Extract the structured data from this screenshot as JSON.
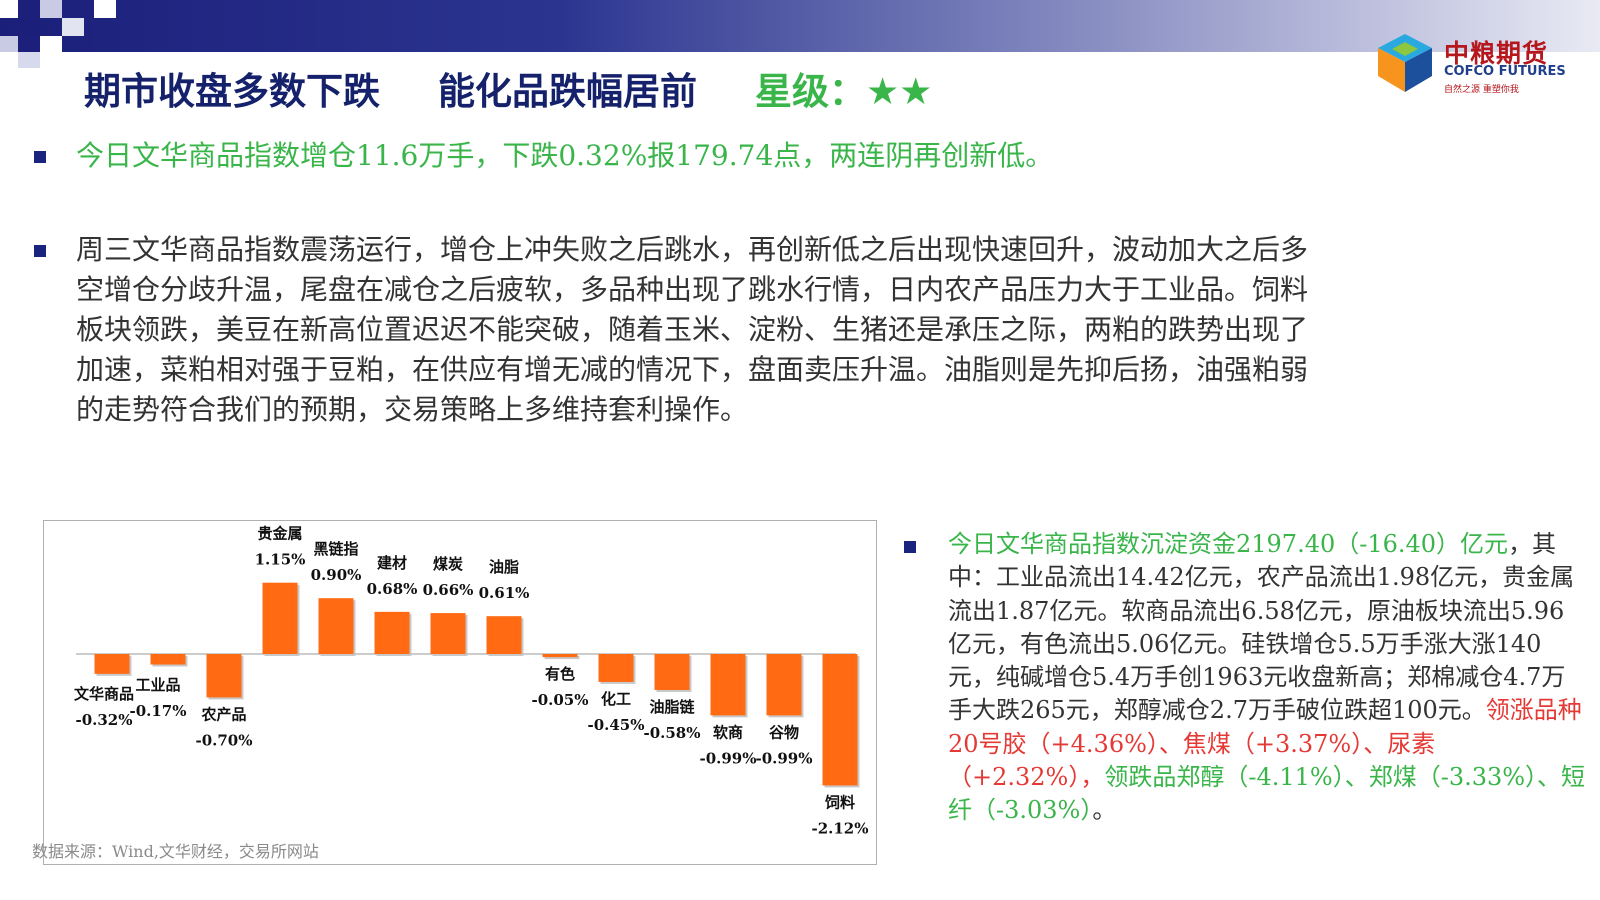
{
  "header": {
    "title_part1": "期市收盘多数下跌",
    "title_part2": "能化品跌幅居前",
    "title_part3": "星级：★★"
  },
  "logo": {
    "name_cn": "中粮期货",
    "name_en": "COFCO FUTURES",
    "slogan": "自然之源 重塑你我"
  },
  "bullets": {
    "b1": "今日文华商品指数增仓11.6万手，下跌0.32%报179.74点，两连阴再创新低。",
    "b2_lines": [
      "周三文华商品指数震荡运行，增仓上冲失败之后跳水，再创新低之后出现快速回升，波动加大之后多",
      "空增仓分歧升温，尾盘在减仓之后疲软，多品种出现了跳水行情，日内农产品压力大于工业品。饲料",
      "板块领跌，美豆在新高位置迟迟不能突破，随着玉米、淀粉、生猪还是承压之际，两粕的跌势出现了",
      "加速，菜粕相对强于豆粕，在供应有增无减的情况下，盘面卖压升温。油脂则是先抑后扬，油强粕弱",
      "的走势符合我们的预期，交易策略上多维持套利操作。"
    ]
  },
  "right_panel": {
    "green_lead": "今日文华商品指数沉淀资金2197.40（-16.40）亿元",
    "body": "，其中：工业品流出14.42亿元，农产品流出1.98亿元，贵金属流出1.87亿元。软商品流出6.58亿元，原油板块流出5.96亿元，有色流出5.06亿元。硅铁增仓5.5万手涨大涨140元，纯碱增仓5.4万手创1963元收盘新高；郑棉减仓4.7万手大跌265元，郑醇减仓2.7万手破位跌超100元。",
    "red_part": "领涨品种20号胶（+4.36%）、焦煤（+3.37%）、尿素（+2.32%），",
    "green_part": "领跌品郑醇（-4.11%）、郑煤（-3.33%）、短纤（-3.03%）",
    "end": "。"
  },
  "source": "数据来源：Wind,文华财经，交易所网站",
  "colors": {
    "bar": "#ff6a13",
    "title_navy": "#15226b",
    "green": "#39b54a",
    "red": "#e53935",
    "bullet": "#1a237e"
  },
  "chart_data": {
    "type": "bar",
    "categories": [
      "文华商品",
      "工业品",
      "农产品",
      "贵金属",
      "黑链指",
      "建材",
      "煤炭",
      "油脂",
      "有色",
      "化工",
      "油脂链",
      "软商",
      "谷物",
      "饲料"
    ],
    "values": [
      -0.32,
      -0.17,
      -0.7,
      1.15,
      0.9,
      0.68,
      0.66,
      0.61,
      -0.05,
      -0.45,
      -0.58,
      -0.99,
      -0.99,
      -2.12
    ],
    "value_labels": [
      "-0.32%",
      "-0.17%",
      "-0.70%",
      "1.15%",
      "0.90%",
      "0.68%",
      "0.66%",
      "0.61%",
      "-0.05%",
      "-0.45%",
      "-0.58%",
      "-0.99%",
      "-0.99%",
      "-2.12%"
    ],
    "unit": "%",
    "grid": false,
    "legend": "none"
  }
}
